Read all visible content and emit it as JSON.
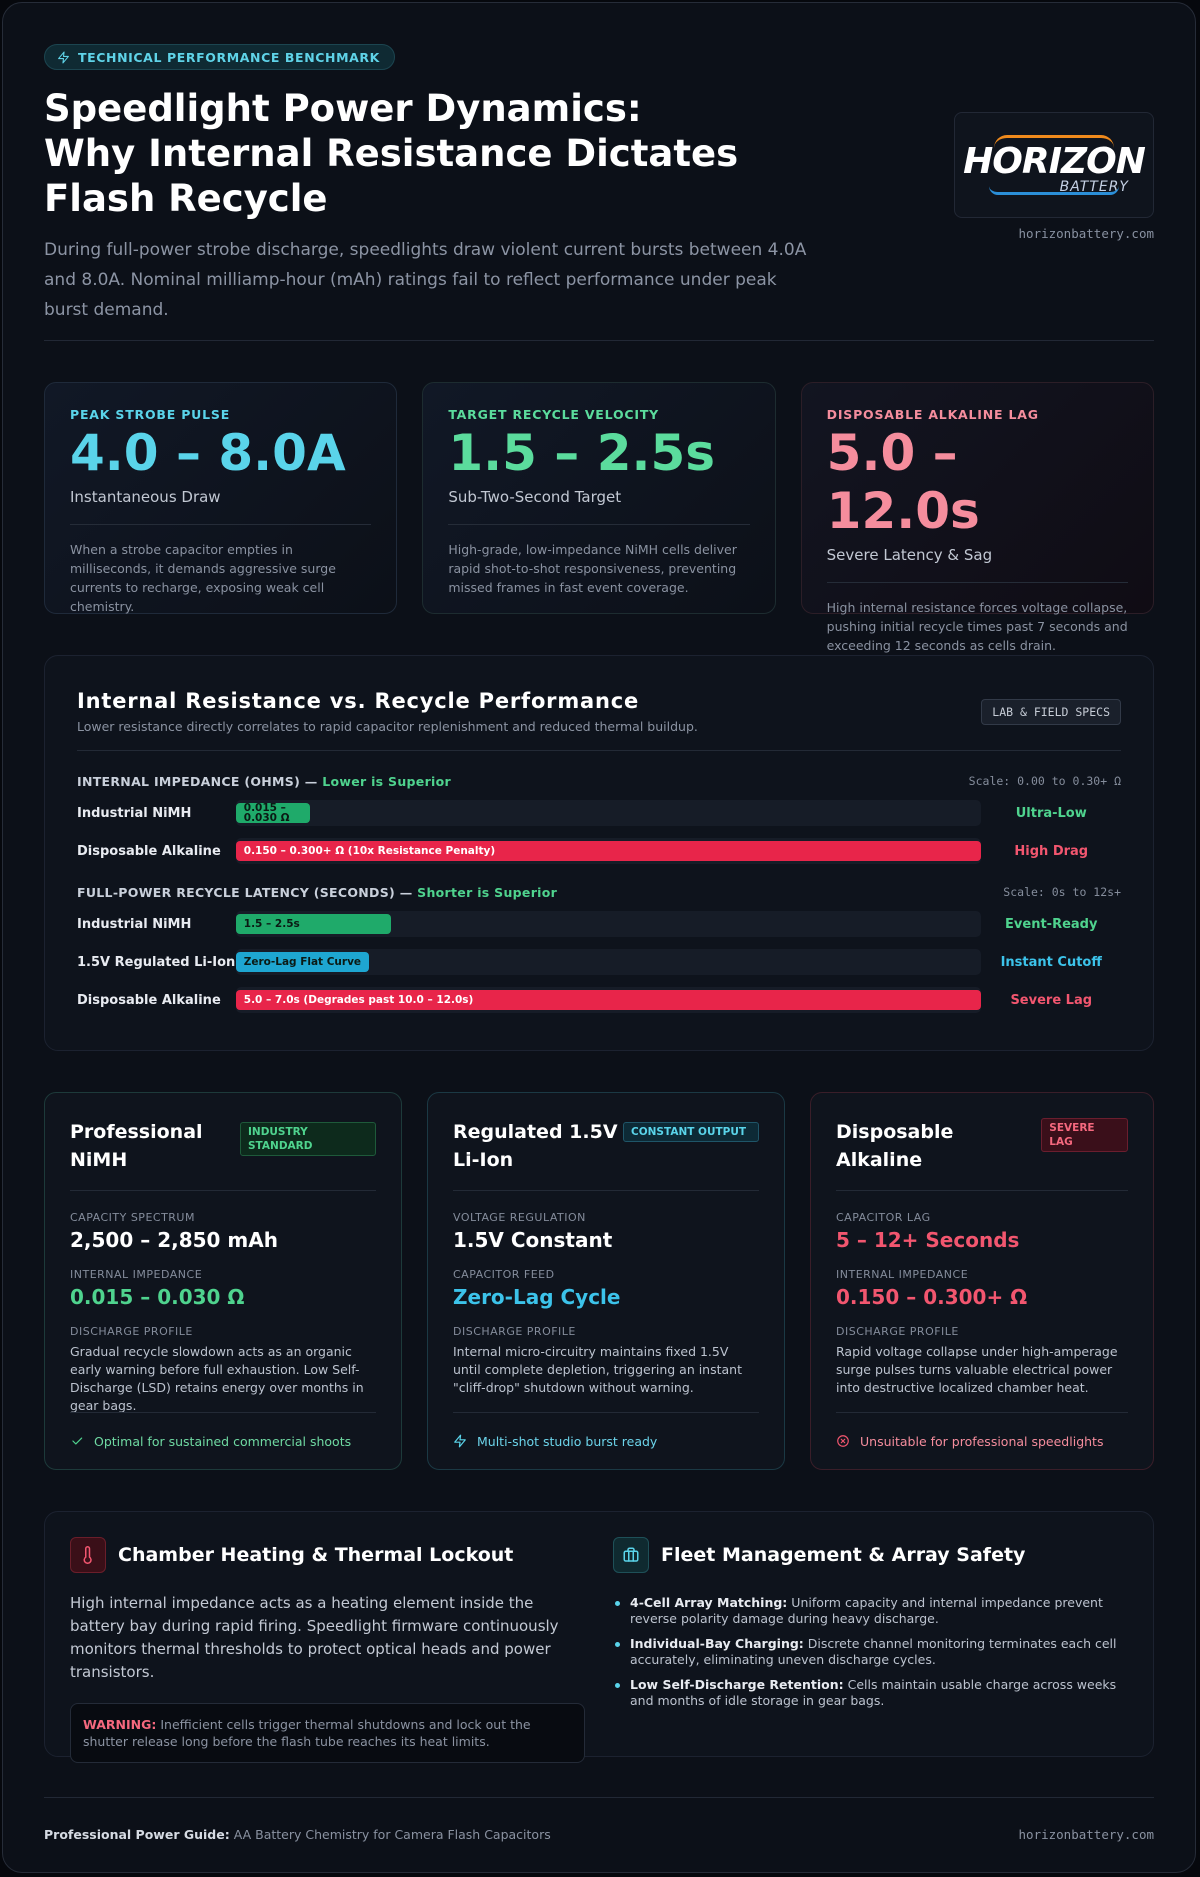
{
  "header": {
    "badge": "TECHNICAL PERFORMANCE BENCHMARK",
    "title": [
      "Speedlight Power Dynamics:",
      "Why Internal Resistance Dictates Flash Recycle"
    ],
    "subtitle": "During full-power strobe discharge, speedlights draw violent current bursts between 4.0A and 8.0A. Nominal milliamp-hour (mAh) ratings fail to reflect performance under peak burst demand.",
    "logo": {
      "main": "HORIZON",
      "sub": "BATTERY"
    },
    "url": "horizonbattery.com"
  },
  "stats": [
    {
      "label": "PEAK STROBE PULSE",
      "value": "4.0 – 8.0A",
      "caption": "Instantaneous Draw",
      "text": "When a strobe capacitor empties in milliseconds, it demands aggressive surge currents to recharge, exposing weak cell chemistry."
    },
    {
      "label": "TARGET RECYCLE VELOCITY",
      "value": "1.5 – 2.5s",
      "caption": "Sub-Two-Second Target",
      "text": "High-grade, low-impedance NiMH cells deliver rapid shot-to-shot responsiveness, preventing missed frames in fast event coverage."
    },
    {
      "label": "DISPOSABLE ALKALINE LAG",
      "value": "5.0 – 12.0s",
      "caption": "Severe Latency & Sag",
      "text": "High internal resistance forces voltage collapse, pushing initial recycle times past 7 seconds and exceeding 12 seconds as cells drain."
    }
  ],
  "chart": {
    "title": "Internal Resistance vs. Recycle Performance",
    "subtitle": "Lower resistance directly correlates to rapid capacitor replenishment and reduced thermal buildup.",
    "tag": "LAB & FIELD SPECS",
    "groups": [
      {
        "heading": "INTERNAL IMPEDANCE (OHMS) —",
        "emphasis": "Lower is Superior",
        "scale": "Scale: 0.00 to 0.30+ Ω",
        "max": 0.3,
        "rows": [
          {
            "label": "Industrial NiMH",
            "bar_text": "0.015 – 0.030 Ω",
            "value": 0.03,
            "status": "Ultra-Low",
            "color": "#1faa6a",
            "status_color": "#4fd38e"
          },
          {
            "label": "Disposable Alkaline",
            "bar_text": "0.150 – 0.300+ Ω (10x Resistance Penalty)",
            "value": 0.3,
            "status": "High Drag",
            "color": "#e8254a",
            "status_color": "#f2566f"
          }
        ]
      },
      {
        "heading": "FULL-POWER RECYCLE LATENCY (SECONDS) —",
        "emphasis": "Shorter is Superior",
        "scale": "Scale: 0s to 12s+",
        "max": 12,
        "rows": [
          {
            "label": "Industrial NiMH",
            "bar_text": "1.5 – 2.5s",
            "value": 2.5,
            "status": "Event-Ready",
            "color": "#1faa6a",
            "status_color": "#4fd38e"
          },
          {
            "label": "1.5V Regulated Li-Ion",
            "bar_text": "Zero-Lag Flat Curve",
            "value": 2.15,
            "status": "Instant Cutoff",
            "color": "#1ea6d1",
            "status_color": "#3cc3ea"
          },
          {
            "label": "Disposable Alkaline",
            "bar_text": "5.0 – 7.0s (Degrades past 10.0 – 12.0s)",
            "value": 12,
            "status": "Severe Lag",
            "color": "#e8254a",
            "status_color": "#f2566f"
          }
        ]
      }
    ]
  },
  "products": [
    {
      "name": "Professional NiMH",
      "badge": "INDUSTRY STANDARD",
      "fields": [
        {
          "label": "CAPACITY SPECTRUM",
          "value": "2,500 – 2,850 mAh"
        },
        {
          "label": "INTERNAL IMPEDANCE",
          "value": "0.015 – 0.030 Ω"
        }
      ],
      "profile": {
        "label": "DISCHARGE PROFILE",
        "text": "Gradual recycle slowdown acts as an organic early warning before full exhaustion. Low Self-Discharge (LSD) retains energy over months in gear bags."
      },
      "footer": "Optimal for sustained commercial shoots"
    },
    {
      "name": "Regulated 1.5V Li-Ion",
      "badge": "CONSTANT OUTPUT",
      "fields": [
        {
          "label": "VOLTAGE REGULATION",
          "value": "1.5V Constant"
        },
        {
          "label": "CAPACITOR FEED",
          "value": "Zero-Lag Cycle"
        }
      ],
      "profile": {
        "label": "DISCHARGE PROFILE",
        "text": "Internal micro-circuitry maintains fixed 1.5V until complete depletion, triggering an instant \"cliff-drop\" shutdown without warning."
      },
      "footer": "Multi-shot studio burst ready"
    },
    {
      "name": "Disposable Alkaline",
      "badge": "SEVERE LAG",
      "fields": [
        {
          "label": "CAPACITOR LAG",
          "value": "5 – 12+ Seconds"
        },
        {
          "label": "INTERNAL IMPEDANCE",
          "value": "0.150 – 0.300+ Ω"
        }
      ],
      "profile": {
        "label": "DISCHARGE PROFILE",
        "text": "Rapid voltage collapse under high-amperage surge pulses turns valuable electrical power into destructive localized chamber heat."
      },
      "footer": "Unsuitable for professional speedlights"
    }
  ],
  "thermal": {
    "title": "Chamber Heating & Thermal Lockout",
    "text": "High internal impedance acts as a heating element inside the battery bay during rapid firing. Speedlight firmware continuously monitors thermal thresholds to protect optical heads and power transistors.",
    "warning_label": "WARNING:",
    "warning": "Inefficient cells trigger thermal shutdowns and lock out the shutter release long before the flash tube reaches its heat limits."
  },
  "fleet": {
    "title": "Fleet Management & Array Safety",
    "items": [
      {
        "term": "4-Cell Array Matching:",
        "text": "Uniform capacity and internal impedance prevent reverse polarity damage during heavy discharge."
      },
      {
        "term": "Individual-Bay Charging:",
        "text": "Discrete channel monitoring terminates each cell accurately, eliminating uneven discharge cycles."
      },
      {
        "term": "Low Self-Discharge Retention:",
        "text": "Cells maintain usable charge across weeks and months of idle storage in gear bags."
      }
    ]
  },
  "footer": {
    "label": "Professional Power Guide:",
    "text": "AA Battery Chemistry for Camera Flash Capacitors",
    "url": "horizonbattery.com"
  }
}
